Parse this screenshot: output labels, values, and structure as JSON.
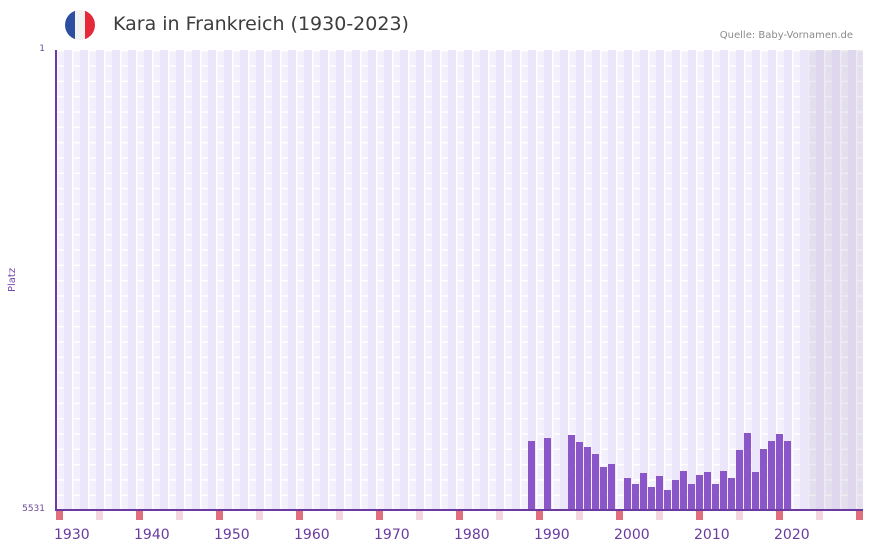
{
  "header": {
    "title": "Kara in Frankreich (1930-2023)",
    "source": "Quelle: Baby-Vornamen.de",
    "flag_colors": [
      "#2d4ea0",
      "#f2f2f2",
      "#e5283a"
    ]
  },
  "axes": {
    "y_label": "Platz",
    "y_top_tick": "1",
    "y_bottom_tick": "5531",
    "x_ticks": [
      "1930",
      "1940",
      "1950",
      "1960",
      "1970",
      "1980",
      "1990",
      "2000",
      "2010",
      "2020"
    ]
  },
  "colors": {
    "bar": "#8b56c8",
    "axis": "#6a3aa0",
    "decade_marker": "#e0717c",
    "half_decade_marker": "#f3d6e0"
  },
  "chart_data": {
    "type": "bar",
    "title": "Kara in Frankreich (1930-2023)",
    "xlabel": "",
    "ylabel": "Platz",
    "y_inverted": true,
    "ylim": [
      5531,
      1
    ],
    "x_range": [
      1930,
      2030
    ],
    "grid": true,
    "categories": [
      1989,
      1991,
      1994,
      1995,
      1996,
      1997,
      1998,
      1999,
      2001,
      2002,
      2003,
      2004,
      2005,
      2006,
      2007,
      2008,
      2009,
      2010,
      2011,
      2012,
      2013,
      2014,
      2015,
      2016,
      2017,
      2018,
      2019,
      2020,
      2021
    ],
    "values": [
      4702,
      4665,
      4629,
      4714,
      4774,
      4858,
      5014,
      4978,
      5146,
      5218,
      5086,
      5254,
      5122,
      5290,
      5170,
      5062,
      5218,
      5110,
      5074,
      5218,
      5062,
      5146,
      4810,
      4605,
      5074,
      4798,
      4702,
      4617,
      4702
    ],
    "source": "Quelle: Baby-Vornamen.de"
  }
}
